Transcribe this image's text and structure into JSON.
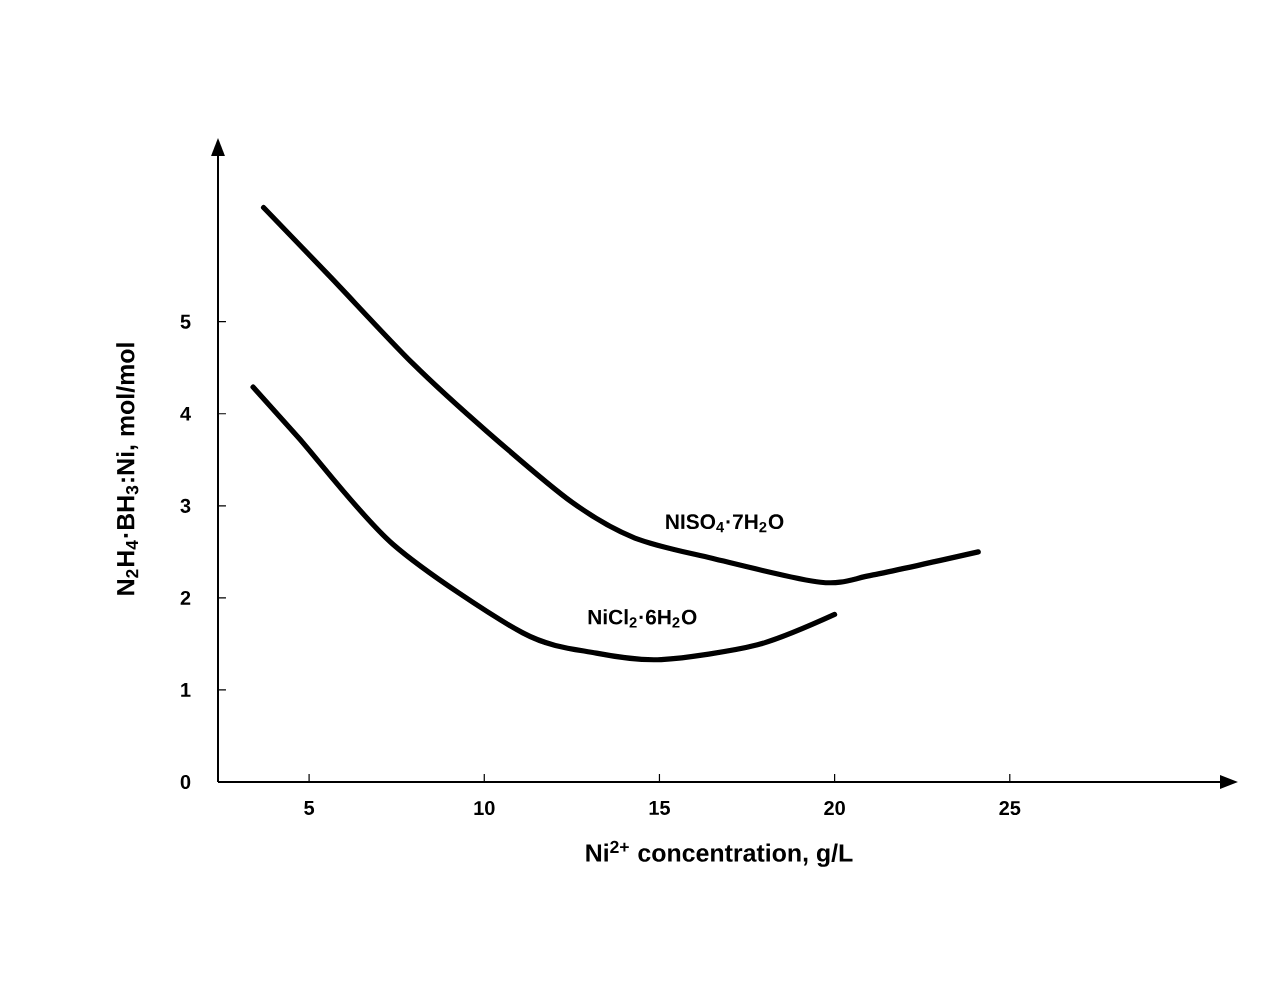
{
  "chart_data": {
    "type": "line",
    "xlabel": "Ni$^{2+}$ concentration, g/L",
    "ylabel": "N$_{2}$H$_{4}$·BH$_{3}$:Ni, mol/mol",
    "xlim": [
      2.4,
      31
    ],
    "ylim": [
      0,
      6.8
    ],
    "xticks": [
      5,
      10,
      15,
      20,
      25
    ],
    "yticks": [
      0,
      1,
      2,
      3,
      4,
      5
    ],
    "grid": false,
    "legend": false,
    "marker": "none",
    "line_style": "solid",
    "series": [
      {
        "name": "NISO$_{4}$·7H$_{2}$O",
        "color": "#000000",
        "x": [
          3.7,
          5.6,
          7.95,
          10.1,
          12.5,
          14.3,
          16.5,
          19.6,
          21.1,
          24.1
        ],
        "values": [
          6.24,
          5.49,
          4.55,
          3.8,
          3.04,
          2.65,
          2.43,
          2.17,
          2.25,
          2.5
        ]
      },
      {
        "name": "NiCl$_{2}$·6H$_{2}$O",
        "color": "#000000",
        "x": [
          3.4,
          4.7,
          7.4,
          11.1,
          13.2,
          15.05,
          17.8,
          20
        ],
        "values": [
          4.29,
          3.74,
          2.58,
          1.62,
          1.4,
          1.33,
          1.49,
          1.82
        ]
      }
    ]
  }
}
